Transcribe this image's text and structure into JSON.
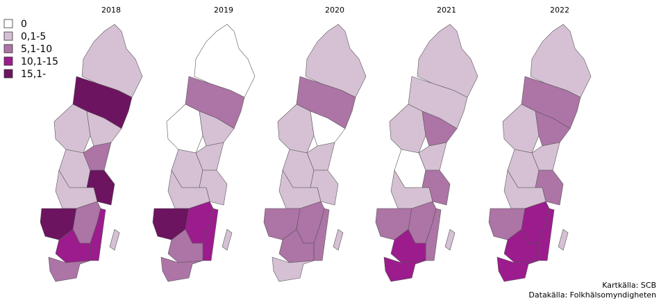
{
  "legend": [
    {
      "label": "0",
      "color": "#ffffff"
    },
    {
      "label": "0,1-5",
      "color": "#d6c1d4"
    },
    {
      "label": "5,1-10",
      "color": "#ad74a6"
    },
    {
      "label": "10,1-15",
      "color": "#9c1c8e"
    },
    {
      "label": "15,1-",
      "color": "#6c1460"
    }
  ],
  "maps": [
    {
      "title": "2018",
      "regions": [
        1,
        4,
        1,
        1,
        2,
        1,
        4,
        1,
        4,
        2,
        3,
        3,
        2,
        1
      ]
    },
    {
      "title": "2019",
      "regions": [
        0,
        2,
        0,
        1,
        1,
        1,
        1,
        1,
        4,
        3,
        3,
        2,
        2,
        1
      ]
    },
    {
      "title": "2020",
      "regions": [
        1,
        2,
        1,
        0,
        1,
        1,
        1,
        1,
        2,
        2,
        2,
        2,
        1,
        1
      ]
    },
    {
      "title": "2021",
      "regions": [
        1,
        1,
        1,
        2,
        1,
        0,
        2,
        1,
        2,
        2,
        2,
        3,
        3,
        1
      ]
    },
    {
      "title": "2022",
      "regions": [
        1,
        2,
        1,
        2,
        1,
        1,
        2,
        1,
        2,
        3,
        3,
        3,
        3,
        1
      ]
    }
  ],
  "sources": [
    "Kartkälla: SCB",
    "Datakälla: Folkhälsomyndigheten"
  ]
}
